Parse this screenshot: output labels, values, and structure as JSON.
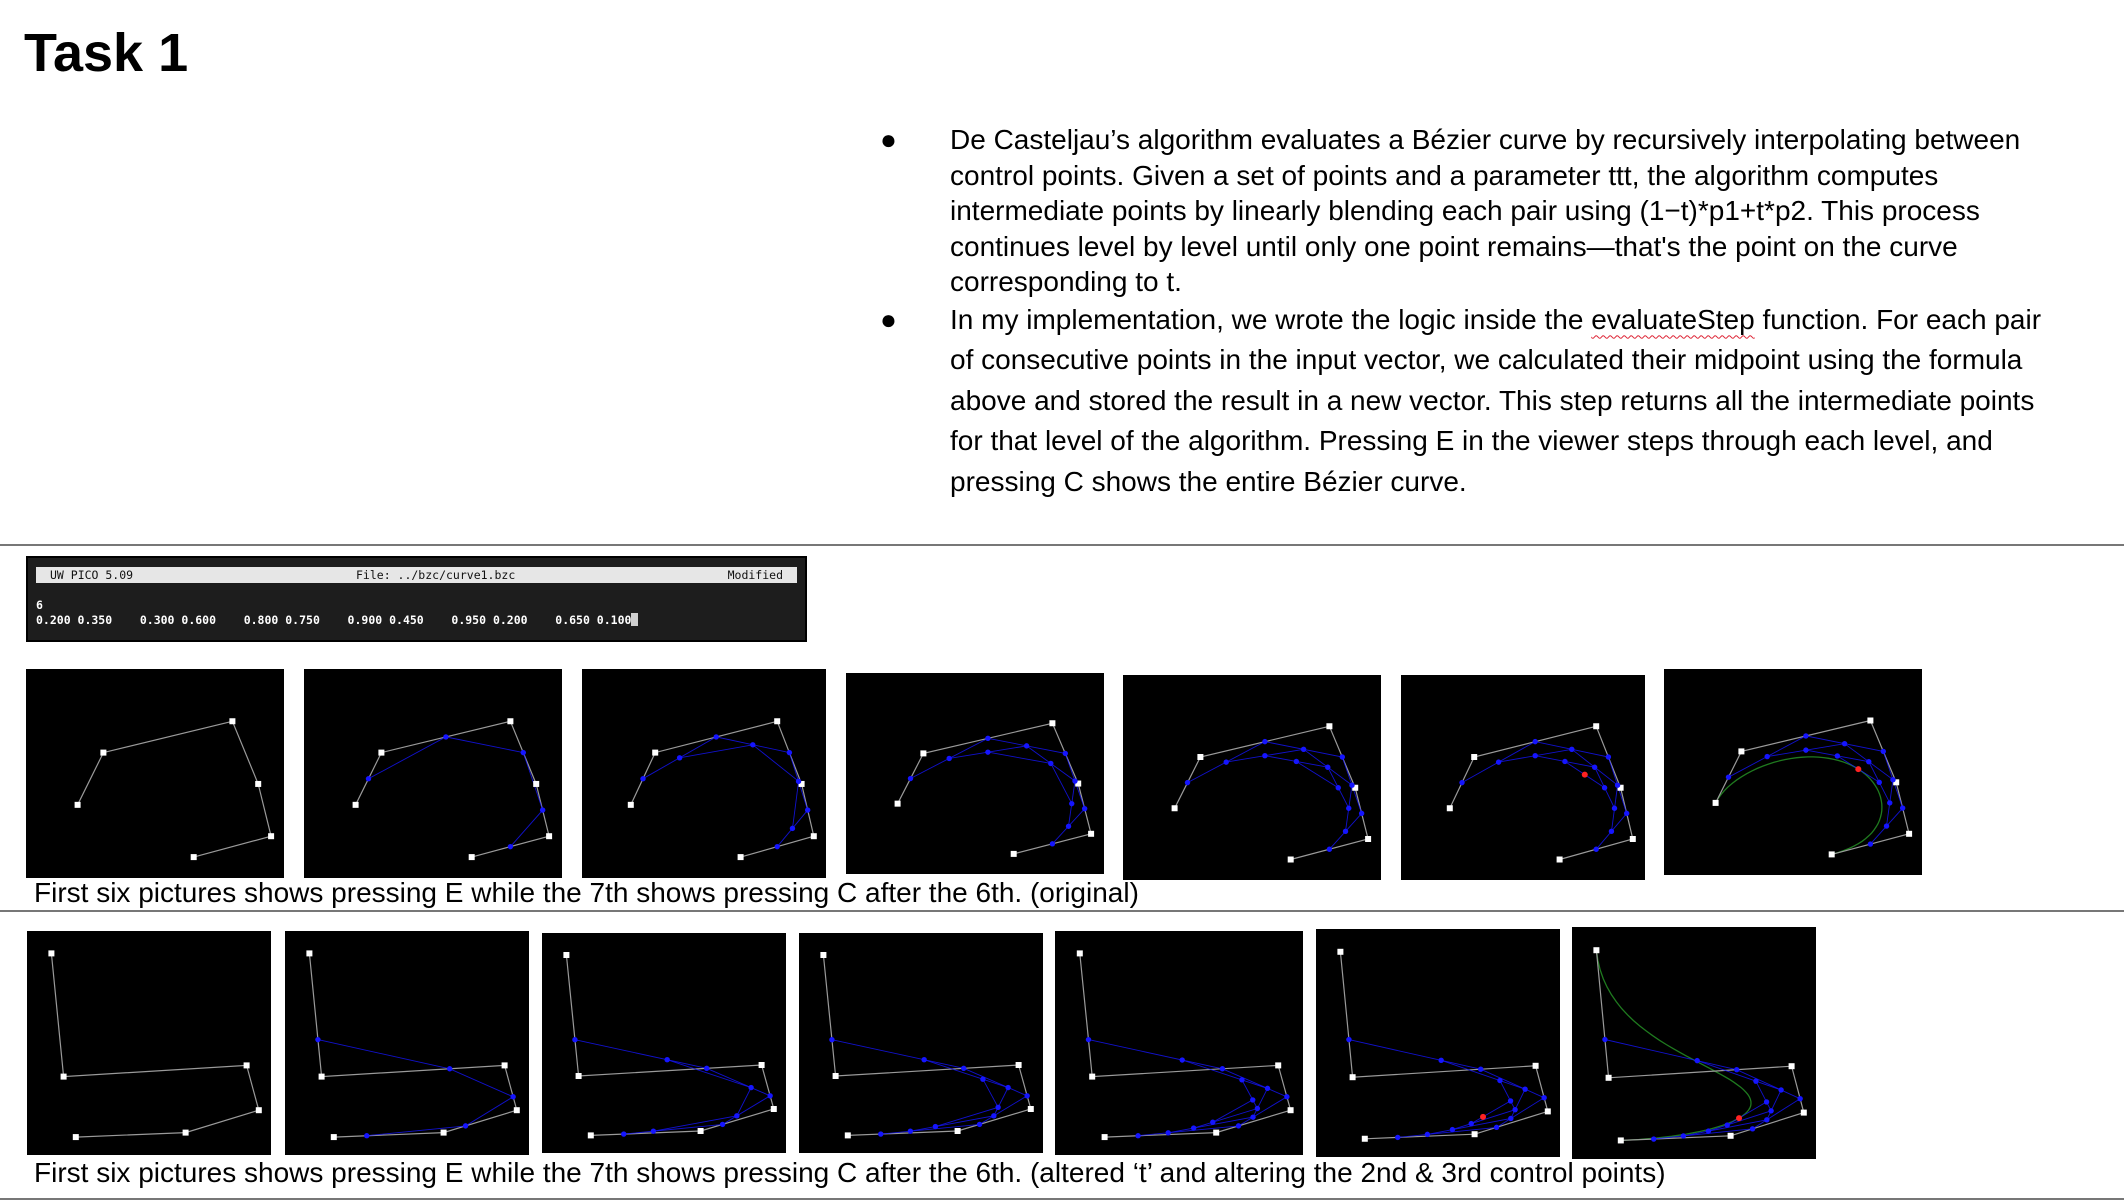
{
  "heading": "Task 1",
  "bullets": [
    {
      "text": "De Casteljau’s algorithm evaluates a Bézier curve by recursively interpolating between control points. Given a set of points and a parameter ttt, the algorithm computes intermediate points by linearly blending each pair using (1−t)*p1+t*p2. This process continues level by level until only one point remains—that's the point on the curve corresponding to t."
    },
    {
      "before": "In my implementation, we wrote the logic inside the ",
      "highlight": "evaluateStep",
      "after": " function. For each pair of consecutive points in the input vector, we calculated their midpoint using the formula above and stored the result in a new vector. This step returns all the intermediate points for that level of the algorithm. Pressing E in the viewer steps through each level, and pressing C shows the entire Bézier curve."
    }
  ],
  "terminal": {
    "app": "UW PICO 5.09",
    "file": "File: ../bzc/curve1.bzc",
    "status": "Modified",
    "line1": "6",
    "line2": "0.200 0.350    0.300 0.600    0.800 0.750    0.900 0.450    0.950 0.200    0.650 0.100"
  },
  "captions": {
    "original": "First six pictures shows pressing E while the 7th shows pressing C after the 6th. (original)",
    "altered": "First six pictures shows pressing E while the 7th shows pressing C after the 6th. (altered ‘t’ and altering the 2nd & 3rd control points)"
  },
  "colors": {
    "control_points": "#ffffff",
    "control_polygon": "#9a9a9a",
    "intermediate": "#1515ff",
    "curve_point": "#ff2222",
    "curve": "#1f7a1f"
  },
  "curves": {
    "original": {
      "control_points": [
        [
          0.2,
          0.35
        ],
        [
          0.3,
          0.6
        ],
        [
          0.8,
          0.75
        ],
        [
          0.9,
          0.45
        ],
        [
          0.95,
          0.2
        ],
        [
          0.65,
          0.1
        ]
      ],
      "t": 0.5,
      "levels_shown": [
        0,
        1,
        2,
        3,
        4,
        5,
        5
      ],
      "curve_drawn": [
        false,
        false,
        false,
        false,
        false,
        false,
        true
      ]
    },
    "altered": {
      "control_points": [
        [
          0.1,
          0.9
        ],
        [
          0.15,
          0.35
        ],
        [
          0.9,
          0.4
        ],
        [
          0.95,
          0.2
        ],
        [
          0.65,
          0.1
        ],
        [
          0.2,
          0.08
        ]
      ],
      "t": 0.7,
      "levels_shown": [
        0,
        1,
        2,
        3,
        4,
        5,
        5
      ],
      "curve_drawn": [
        false,
        false,
        false,
        false,
        false,
        false,
        true
      ]
    }
  }
}
